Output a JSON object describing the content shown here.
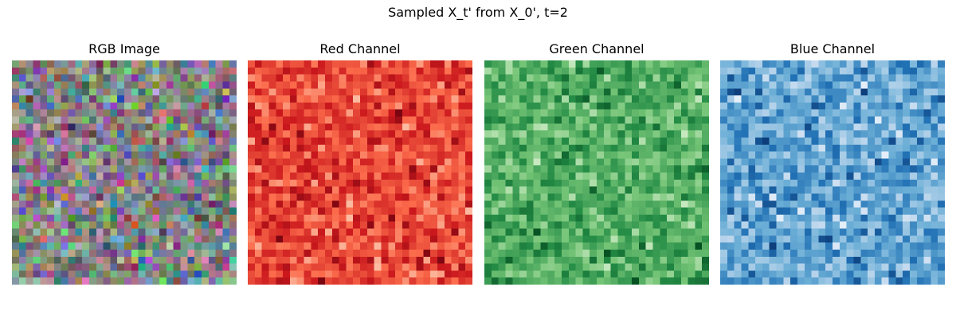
{
  "figure": {
    "suptitle": "Sampled X_t' from X_0', t=2"
  },
  "chart_data": [
    {
      "type": "heatmap",
      "title": "RGB Image",
      "grid_size": [
        32,
        32
      ],
      "colormap": "rgb",
      "axes": "off"
    },
    {
      "type": "heatmap",
      "title": "Red Channel",
      "grid_size": [
        32,
        32
      ],
      "colormap": "Reds",
      "axes": "off"
    },
    {
      "type": "heatmap",
      "title": "Green Channel",
      "grid_size": [
        32,
        32
      ],
      "colormap": "Greens",
      "axes": "off"
    },
    {
      "type": "heatmap",
      "title": "Blue Channel",
      "grid_size": [
        32,
        32
      ],
      "colormap": "Blues",
      "axes": "off"
    }
  ]
}
